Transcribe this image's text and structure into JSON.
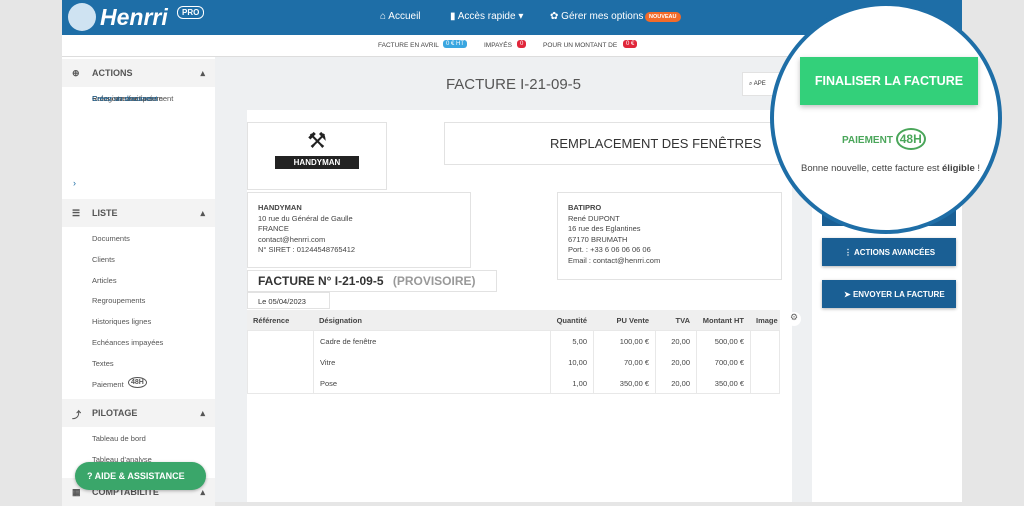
{
  "header": {
    "logo": "Henrri",
    "plan": "PRO",
    "nav": [
      "Accueil",
      "Accès rapide",
      "Gérer mes options"
    ],
    "new_badge": "NOUVEAU"
  },
  "stats": {
    "invoices_label": "FACTURE EN AVRIL",
    "invoices_value": "0 € HT",
    "unpaid_label": "IMPAYÉS",
    "unpaid_value": "0",
    "amount_label": "POUR UN MONTANT DE",
    "amount_value": "0 €"
  },
  "sidebar": {
    "sections": [
      {
        "title": "ACTIONS",
        "items": [
          "Créez un devis",
          "Créez une facture",
          "Enregistrez un paiement",
          "Relancez une facture",
          "Créez un document"
        ]
      },
      {
        "title": "LISTE",
        "items": [
          "Documents",
          "Clients",
          "Articles",
          "Regroupements",
          "Historiques lignes",
          "Echéances impayées",
          "Textes",
          "Paiement"
        ]
      },
      {
        "title": "PILOTAGE",
        "items": [
          "Tableau de bord",
          "Tableau d'analyse"
        ]
      },
      {
        "title": "COMPTABILITÉ",
        "items": []
      }
    ],
    "badge_48h": "48H",
    "help": "AIDE & ASSISTANCE"
  },
  "main": {
    "title": "FACTURE I-21-09-5",
    "search": "APE"
  },
  "document": {
    "logo": "HANDYMAN",
    "title": "REMPLACEMENT DES FENÊTRES",
    "sender": [
      "HANDYMAN",
      "10 rue du Général de Gaulle",
      "FRANCE",
      "contact@henrri.com",
      "N° SIRET : 01244548765412"
    ],
    "recipient": [
      "BATIPRO",
      "René DUPONT",
      "16 rue des Eglantines",
      "67170 BRUMATH",
      "Port. : +33 6 06 06 06 06",
      "Email : contact@henrri.com"
    ],
    "invoice_number": "FACTURE N° I-21-09-5",
    "status": "(PROVISOIRE)",
    "date": "Le 05/04/2023",
    "table": {
      "headers": [
        "Référence",
        "Désignation",
        "Quantité",
        "PU Vente",
        "TVA",
        "Montant HT",
        "Image"
      ],
      "rows": [
        [
          "",
          "Cadre de fenêtre",
          "5,00",
          "100,00 €",
          "20,00",
          "500,00 €",
          ""
        ],
        [
          "",
          "Vitre",
          "10,00",
          "70,00 €",
          "20,00",
          "700,00 €",
          ""
        ],
        [
          "",
          "Pose",
          "1,00",
          "350,00 €",
          "20,00",
          "350,00 €",
          ""
        ]
      ]
    }
  },
  "panel": {
    "finalize": "FINALISER LA FACTURE",
    "payment": "PAIEMENT",
    "payment_badge": "48H",
    "message": "Bonne nouvelle, cette facture est",
    "message_strong": "éligible",
    "message_end": " !",
    "advanced": "ACTIONS AVANCÉES",
    "send": "ENVOYER LA FACTURE"
  }
}
